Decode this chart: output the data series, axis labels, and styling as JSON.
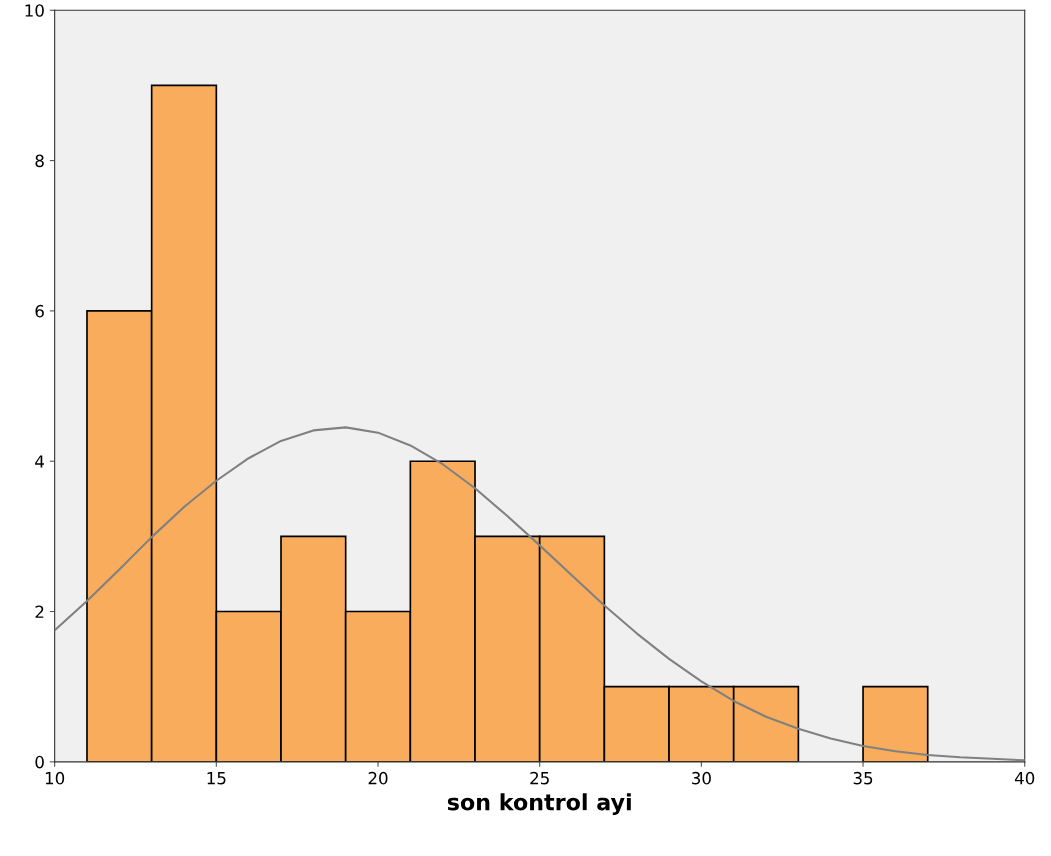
{
  "chart_data": {
    "type": "histogram",
    "xlabel": "son kontrol ayi",
    "bins": [
      11,
      13,
      15,
      17,
      19,
      21,
      23,
      25,
      27,
      29,
      31,
      33,
      35,
      37
    ],
    "series": [
      {
        "color": "#f9ad5c",
        "values": [
          6,
          9,
          2,
          3,
          2,
          4,
          3,
          3,
          1,
          1,
          1,
          0,
          1
        ]
      },
      {
        "type": "line",
        "color": "#808080",
        "x": [
          10,
          11,
          12,
          13,
          14,
          15,
          16,
          17,
          18,
          19,
          20,
          21,
          22,
          23,
          24,
          25,
          26,
          27,
          28,
          29,
          30,
          31,
          32,
          33,
          34,
          35,
          36,
          37,
          38,
          39,
          40
        ],
        "values": [
          1.75,
          2.14,
          2.56,
          2.99,
          3.39,
          3.74,
          4.04,
          4.27,
          4.41,
          4.45,
          4.38,
          4.21,
          3.96,
          3.64,
          3.27,
          2.88,
          2.48,
          2.08,
          1.71,
          1.37,
          1.07,
          0.81,
          0.6,
          0.44,
          0.31,
          0.21,
          0.14,
          0.09,
          0.06,
          0.04,
          0.02
        ]
      }
    ],
    "xlim": [
      10,
      40
    ],
    "ylim": [
      0,
      10
    ],
    "xticks": [
      10,
      15,
      20,
      25,
      30,
      35,
      40
    ],
    "yticks": [
      0,
      2,
      4,
      6,
      8,
      10
    ],
    "grid": false
  }
}
